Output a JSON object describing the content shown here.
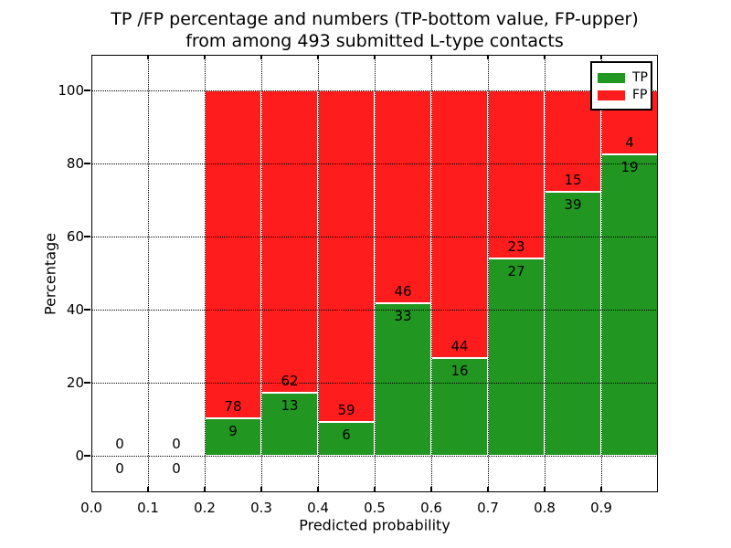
{
  "title": {
    "line1": "TP /FP percentage and numbers (TP-bottom value, FP-upper)",
    "line2": "from among 493 submitted L-type contacts"
  },
  "axes": {
    "xlabel": "Predicted probability",
    "ylabel": "Percentage",
    "xticks": [
      {
        "label": "0.0",
        "value": 0.0
      },
      {
        "label": "0.1",
        "value": 0.1
      },
      {
        "label": "0.2",
        "value": 0.2
      },
      {
        "label": "0.3",
        "value": 0.3
      },
      {
        "label": "0.4",
        "value": 0.4
      },
      {
        "label": "0.5",
        "value": 0.5
      },
      {
        "label": "0.6",
        "value": 0.6
      },
      {
        "label": "0.7",
        "value": 0.7
      },
      {
        "label": "0.8",
        "value": 0.8
      },
      {
        "label": "0.9",
        "value": 0.9
      }
    ],
    "yticks": [
      {
        "label": "0",
        "value": 0
      },
      {
        "label": "20",
        "value": 20
      },
      {
        "label": "40",
        "value": 40
      },
      {
        "label": "60",
        "value": 60
      },
      {
        "label": "80",
        "value": 80
      },
      {
        "label": "100",
        "value": 100
      }
    ],
    "xlim": [
      0.0,
      1.0
    ],
    "ylim": [
      -10,
      110
    ]
  },
  "legend": [
    {
      "label": "TP",
      "color": "#219621"
    },
    {
      "label": "FP",
      "color": "#ff1c1c"
    }
  ],
  "chart_data": {
    "type": "bar",
    "stacked": true,
    "title": "TP /FP percentage and numbers (TP-bottom value, FP-upper) from among 493 submitted L-type contacts",
    "xlabel": "Predicted probability",
    "ylabel": "Percentage",
    "xlim": [
      0.0,
      1.0
    ],
    "ylim": [
      -10,
      110
    ],
    "grid": true,
    "grid_style": "dotted",
    "legend_position": "upper right",
    "bar_width": 0.1,
    "total_contacts": 493,
    "colors": {
      "tp": "#219621",
      "fp": "#ff1c1c",
      "bar_edge": "#ffffff"
    },
    "bins": [
      {
        "range": [
          0.0,
          0.1
        ],
        "tp_count": 0,
        "fp_count": 0,
        "tp_pct": 0,
        "fp_pct": 0
      },
      {
        "range": [
          0.1,
          0.2
        ],
        "tp_count": 0,
        "fp_count": 0,
        "tp_pct": 0,
        "fp_pct": 0
      },
      {
        "range": [
          0.2,
          0.3
        ],
        "tp_count": 9,
        "fp_count": 78,
        "tp_pct": 10.34,
        "fp_pct": 89.66
      },
      {
        "range": [
          0.3,
          0.4
        ],
        "tp_count": 13,
        "fp_count": 62,
        "tp_pct": 17.33,
        "fp_pct": 82.67
      },
      {
        "range": [
          0.4,
          0.5
        ],
        "tp_count": 6,
        "fp_count": 59,
        "tp_pct": 9.23,
        "fp_pct": 90.77
      },
      {
        "range": [
          0.5,
          0.6
        ],
        "tp_count": 33,
        "fp_count": 46,
        "tp_pct": 41.77,
        "fp_pct": 58.23
      },
      {
        "range": [
          0.6,
          0.7
        ],
        "tp_count": 16,
        "fp_count": 44,
        "tp_pct": 26.67,
        "fp_pct": 73.33
      },
      {
        "range": [
          0.7,
          0.8
        ],
        "tp_count": 27,
        "fp_count": 23,
        "tp_pct": 54.0,
        "fp_pct": 46.0
      },
      {
        "range": [
          0.8,
          0.9
        ],
        "tp_count": 39,
        "fp_count": 15,
        "tp_pct": 72.22,
        "fp_pct": 27.78
      },
      {
        "range": [
          0.9,
          1.0
        ],
        "tp_count": 19,
        "fp_count": 4,
        "tp_pct": 82.61,
        "fp_pct": 17.39
      }
    ]
  }
}
